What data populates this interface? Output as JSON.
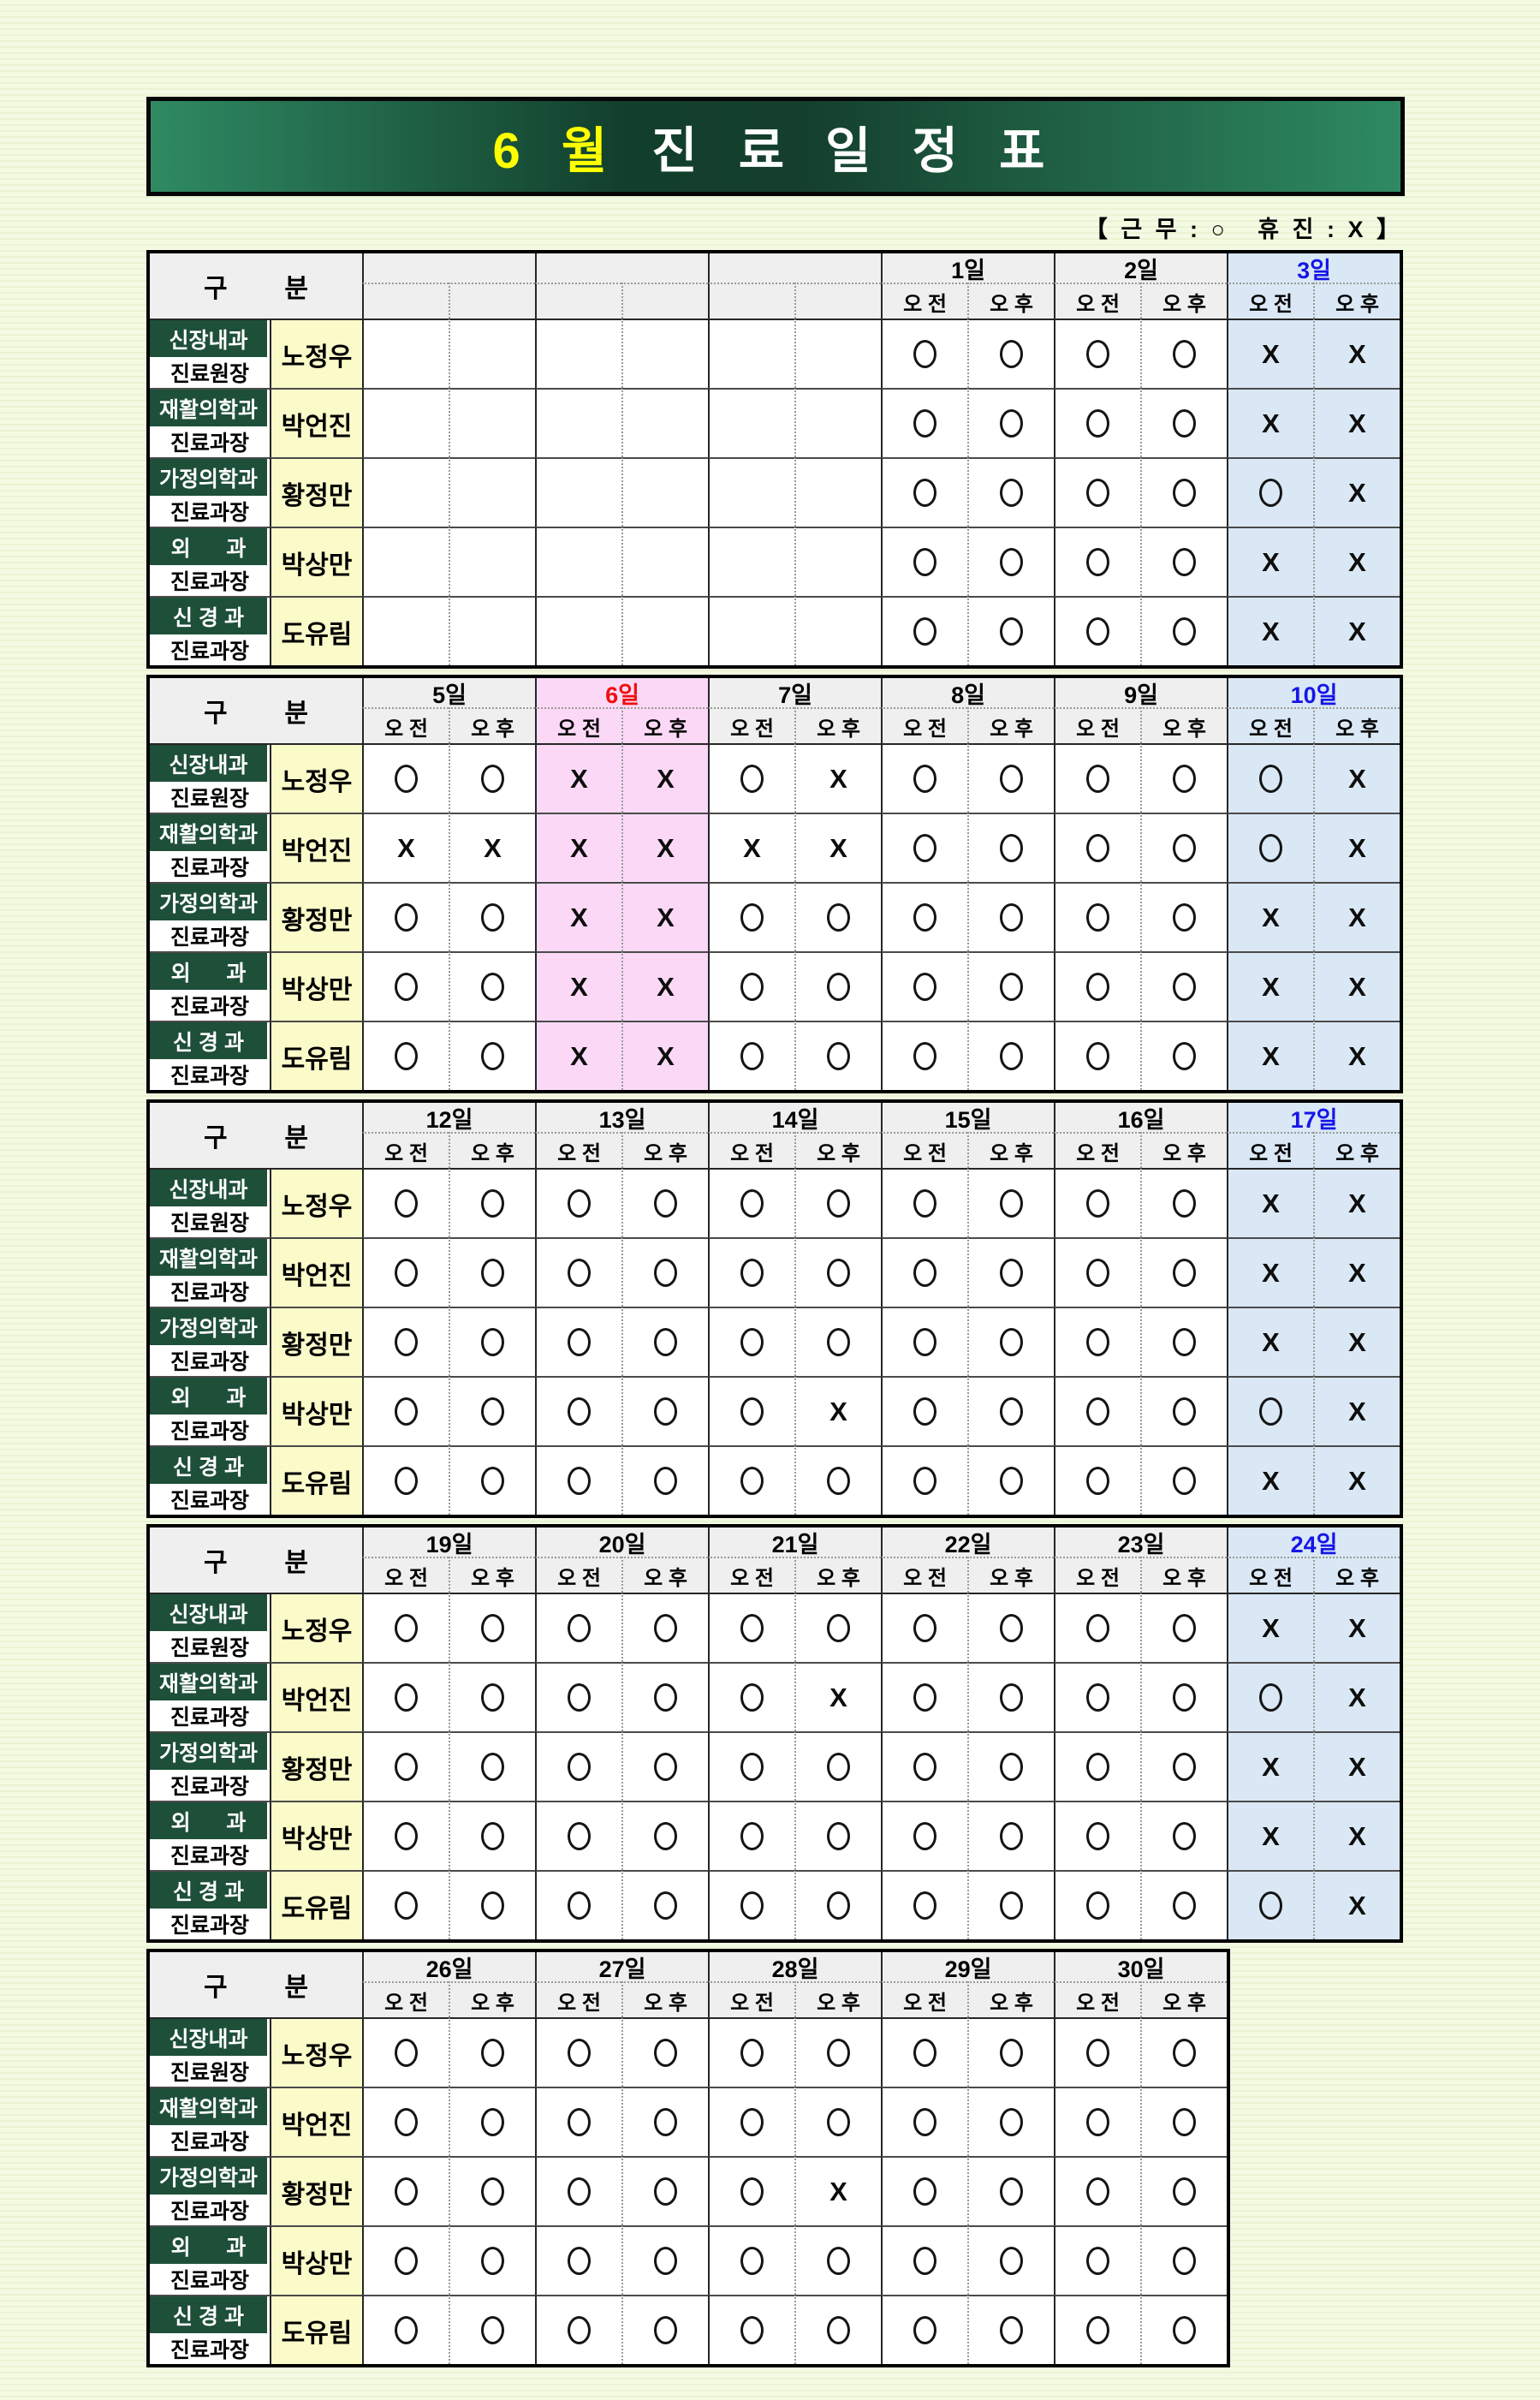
{
  "banner": {
    "month": "6 월",
    "title": "진 료 일 정 표"
  },
  "legend_label": "【 근 무 : ○   휴 진 : X 】",
  "header": {
    "category": "구        분",
    "am": "오 전",
    "pm": "오 후"
  },
  "marks": {
    "work": "O",
    "closed": "X"
  },
  "colors": {
    "banner_green_edge": "#2f8a63",
    "banner_green_dark": "#123f2c",
    "banner_month_text": "#ffff00",
    "dept_bg": "#1e4f39",
    "name_bg": "#fbfbca",
    "header_bg": "#efefef",
    "saturday_bg": "#d9e8f4",
    "saturday_text": "#1515e8",
    "holiday_bg": "#fbd9f6",
    "holiday_text": "#ee0e0e",
    "page_bg": "#f1f8de"
  },
  "doctors": [
    {
      "dept": "신장내과",
      "position": "진료원장",
      "name": "노정우"
    },
    {
      "dept": "재활의학과",
      "position": "진료과장",
      "name": "박언진"
    },
    {
      "dept": "가정의학과",
      "position": "진료과장",
      "name": "황정만"
    },
    {
      "dept": "외      과",
      "position": "진료과장",
      "name": "박상만"
    },
    {
      "dept": "신 경 과",
      "position": "진료과장",
      "name": "도유림"
    }
  ],
  "tables": [
    {
      "columns": [
        {
          "label": "",
          "kind": "empty",
          "values": [
            [
              "",
              ""
            ],
            [
              "",
              ""
            ],
            [
              "",
              ""
            ],
            [
              "",
              ""
            ],
            [
              "",
              ""
            ]
          ]
        },
        {
          "label": "",
          "kind": "empty",
          "values": [
            [
              "",
              ""
            ],
            [
              "",
              ""
            ],
            [
              "",
              ""
            ],
            [
              "",
              ""
            ],
            [
              "",
              ""
            ]
          ]
        },
        {
          "label": "",
          "kind": "empty",
          "values": [
            [
              "",
              ""
            ],
            [
              "",
              ""
            ],
            [
              "",
              ""
            ],
            [
              "",
              ""
            ],
            [
              "",
              ""
            ]
          ]
        },
        {
          "label": "1일",
          "kind": "normal",
          "values": [
            [
              "O",
              "O"
            ],
            [
              "O",
              "O"
            ],
            [
              "O",
              "O"
            ],
            [
              "O",
              "O"
            ],
            [
              "O",
              "O"
            ]
          ]
        },
        {
          "label": "2일",
          "kind": "normal",
          "values": [
            [
              "O",
              "O"
            ],
            [
              "O",
              "O"
            ],
            [
              "O",
              "O"
            ],
            [
              "O",
              "O"
            ],
            [
              "O",
              "O"
            ]
          ]
        },
        {
          "label": "3일",
          "kind": "saturday",
          "values": [
            [
              "X",
              "X"
            ],
            [
              "X",
              "X"
            ],
            [
              "O",
              "X"
            ],
            [
              "X",
              "X"
            ],
            [
              "X",
              "X"
            ]
          ]
        }
      ]
    },
    {
      "columns": [
        {
          "label": "5일",
          "kind": "normal",
          "values": [
            [
              "O",
              "O"
            ],
            [
              "X",
              "X"
            ],
            [
              "O",
              "O"
            ],
            [
              "O",
              "O"
            ],
            [
              "O",
              "O"
            ]
          ]
        },
        {
          "label": "6일",
          "kind": "holiday",
          "values": [
            [
              "X",
              "X"
            ],
            [
              "X",
              "X"
            ],
            [
              "X",
              "X"
            ],
            [
              "X",
              "X"
            ],
            [
              "X",
              "X"
            ]
          ]
        },
        {
          "label": "7일",
          "kind": "normal",
          "values": [
            [
              "O",
              "X"
            ],
            [
              "X",
              "X"
            ],
            [
              "O",
              "O"
            ],
            [
              "O",
              "O"
            ],
            [
              "O",
              "O"
            ]
          ]
        },
        {
          "label": "8일",
          "kind": "normal",
          "values": [
            [
              "O",
              "O"
            ],
            [
              "O",
              "O"
            ],
            [
              "O",
              "O"
            ],
            [
              "O",
              "O"
            ],
            [
              "O",
              "O"
            ]
          ]
        },
        {
          "label": "9일",
          "kind": "normal",
          "values": [
            [
              "O",
              "O"
            ],
            [
              "O",
              "O"
            ],
            [
              "O",
              "O"
            ],
            [
              "O",
              "O"
            ],
            [
              "O",
              "O"
            ]
          ]
        },
        {
          "label": "10일",
          "kind": "saturday",
          "values": [
            [
              "O",
              "X"
            ],
            [
              "O",
              "X"
            ],
            [
              "X",
              "X"
            ],
            [
              "X",
              "X"
            ],
            [
              "X",
              "X"
            ]
          ]
        }
      ]
    },
    {
      "columns": [
        {
          "label": "12일",
          "kind": "normal",
          "values": [
            [
              "O",
              "O"
            ],
            [
              "O",
              "O"
            ],
            [
              "O",
              "O"
            ],
            [
              "O",
              "O"
            ],
            [
              "O",
              "O"
            ]
          ]
        },
        {
          "label": "13일",
          "kind": "normal",
          "values": [
            [
              "O",
              "O"
            ],
            [
              "O",
              "O"
            ],
            [
              "O",
              "O"
            ],
            [
              "O",
              "O"
            ],
            [
              "O",
              "O"
            ]
          ]
        },
        {
          "label": "14일",
          "kind": "normal",
          "values": [
            [
              "O",
              "O"
            ],
            [
              "O",
              "O"
            ],
            [
              "O",
              "O"
            ],
            [
              "O",
              "X"
            ],
            [
              "O",
              "O"
            ]
          ]
        },
        {
          "label": "15일",
          "kind": "normal",
          "values": [
            [
              "O",
              "O"
            ],
            [
              "O",
              "O"
            ],
            [
              "O",
              "O"
            ],
            [
              "O",
              "O"
            ],
            [
              "O",
              "O"
            ]
          ]
        },
        {
          "label": "16일",
          "kind": "normal",
          "values": [
            [
              "O",
              "O"
            ],
            [
              "O",
              "O"
            ],
            [
              "O",
              "O"
            ],
            [
              "O",
              "O"
            ],
            [
              "O",
              "O"
            ]
          ]
        },
        {
          "label": "17일",
          "kind": "saturday",
          "values": [
            [
              "X",
              "X"
            ],
            [
              "X",
              "X"
            ],
            [
              "X",
              "X"
            ],
            [
              "O",
              "X"
            ],
            [
              "X",
              "X"
            ]
          ]
        }
      ]
    },
    {
      "columns": [
        {
          "label": "19일",
          "kind": "normal",
          "values": [
            [
              "O",
              "O"
            ],
            [
              "O",
              "O"
            ],
            [
              "O",
              "O"
            ],
            [
              "O",
              "O"
            ],
            [
              "O",
              "O"
            ]
          ]
        },
        {
          "label": "20일",
          "kind": "normal",
          "values": [
            [
              "O",
              "O"
            ],
            [
              "O",
              "O"
            ],
            [
              "O",
              "O"
            ],
            [
              "O",
              "O"
            ],
            [
              "O",
              "O"
            ]
          ]
        },
        {
          "label": "21일",
          "kind": "normal",
          "values": [
            [
              "O",
              "O"
            ],
            [
              "O",
              "X"
            ],
            [
              "O",
              "O"
            ],
            [
              "O",
              "O"
            ],
            [
              "O",
              "O"
            ]
          ]
        },
        {
          "label": "22일",
          "kind": "normal",
          "values": [
            [
              "O",
              "O"
            ],
            [
              "O",
              "O"
            ],
            [
              "O",
              "O"
            ],
            [
              "O",
              "O"
            ],
            [
              "O",
              "O"
            ]
          ]
        },
        {
          "label": "23일",
          "kind": "normal",
          "values": [
            [
              "O",
              "O"
            ],
            [
              "O",
              "O"
            ],
            [
              "O",
              "O"
            ],
            [
              "O",
              "O"
            ],
            [
              "O",
              "O"
            ]
          ]
        },
        {
          "label": "24일",
          "kind": "saturday",
          "values": [
            [
              "X",
              "X"
            ],
            [
              "O",
              "X"
            ],
            [
              "X",
              "X"
            ],
            [
              "X",
              "X"
            ],
            [
              "O",
              "X"
            ]
          ]
        }
      ]
    },
    {
      "columns": [
        {
          "label": "26일",
          "kind": "normal",
          "values": [
            [
              "O",
              "O"
            ],
            [
              "O",
              "O"
            ],
            [
              "O",
              "O"
            ],
            [
              "O",
              "O"
            ],
            [
              "O",
              "O"
            ]
          ]
        },
        {
          "label": "27일",
          "kind": "normal",
          "values": [
            [
              "O",
              "O"
            ],
            [
              "O",
              "O"
            ],
            [
              "O",
              "O"
            ],
            [
              "O",
              "O"
            ],
            [
              "O",
              "O"
            ]
          ]
        },
        {
          "label": "28일",
          "kind": "normal",
          "values": [
            [
              "O",
              "O"
            ],
            [
              "O",
              "O"
            ],
            [
              "O",
              "X"
            ],
            [
              "O",
              "O"
            ],
            [
              "O",
              "O"
            ]
          ]
        },
        {
          "label": "29일",
          "kind": "normal",
          "values": [
            [
              "O",
              "O"
            ],
            [
              "O",
              "O"
            ],
            [
              "O",
              "O"
            ],
            [
              "O",
              "O"
            ],
            [
              "O",
              "O"
            ]
          ]
        },
        {
          "label": "30일",
          "kind": "normal",
          "values": [
            [
              "O",
              "O"
            ],
            [
              "O",
              "O"
            ],
            [
              "O",
              "O"
            ],
            [
              "O",
              "O"
            ],
            [
              "O",
              "O"
            ]
          ]
        }
      ]
    }
  ]
}
